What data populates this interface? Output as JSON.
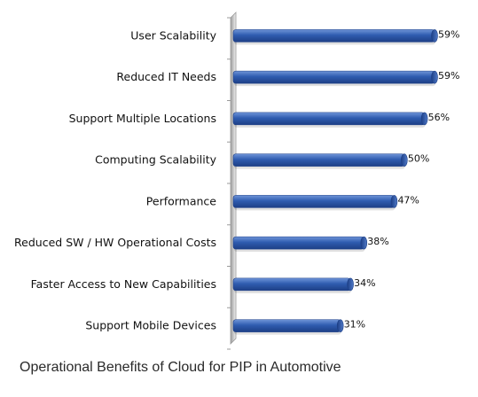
{
  "chart_data": {
    "type": "bar",
    "orientation": "horizontal",
    "title": "Operational Benefits of Cloud for PIP in Automotive",
    "categories": [
      "User Scalability",
      "Reduced IT Needs",
      "Support Multiple Locations",
      "Computing Scalability",
      "Performance",
      "Reduced SW / HW Operational Costs",
      "Faster Access to New Capabilities",
      "Support Mobile Devices"
    ],
    "values": [
      59,
      59,
      56,
      50,
      47,
      38,
      34,
      31
    ],
    "value_labels": [
      "59%",
      "59%",
      "56%",
      "50%",
      "47%",
      "38%",
      "34%",
      "31%"
    ],
    "xlim": [
      0,
      100
    ],
    "grid": false,
    "legend": "none",
    "colors": {
      "bar": "#2f5cb0",
      "bar_dark": "#1d3f86",
      "bar_light": "#6f95d8",
      "axis": "#9a9a9a"
    }
  }
}
